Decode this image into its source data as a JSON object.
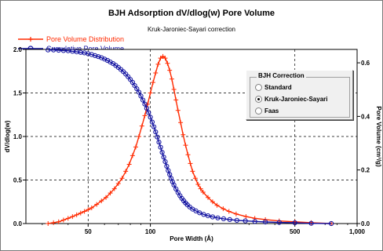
{
  "chart_data": {
    "type": "line",
    "title": "BJH Adsorption dV/dlog(w) Pore Volume",
    "subtitle": "Kruk-Jaroniec-Sayari correction",
    "xlabel": "Pore Width (Å)",
    "ylabel_left": "dV/dlog(w)",
    "ylabel_right": "Pore Volume (cm³/g)",
    "xscale": "log",
    "xlim": [
      25,
      1000
    ],
    "ylim_left": [
      0,
      2.0
    ],
    "ylim_right": [
      0,
      0.65
    ],
    "x_ticks": [
      {
        "value": 50,
        "label": "50"
      },
      {
        "value": 100,
        "label": "100"
      },
      {
        "value": 500,
        "label": "500"
      },
      {
        "value": 1000,
        "label": "1,000"
      }
    ],
    "y_ticks_left": [
      "0.0",
      "0.5",
      "1.0",
      "1.5",
      "2.0"
    ],
    "y_ticks_right": [
      "0.0",
      "0.2",
      "0.4",
      "0.6"
    ],
    "grid": true,
    "legend_position": "top-left",
    "series": [
      {
        "name": "Pore Volume Distribution",
        "axis": "left",
        "color": "#ff2a00",
        "marker": "plus",
        "x": [
          32,
          34,
          36,
          38,
          40,
          42,
          44,
          46,
          48,
          50,
          52,
          55,
          58,
          61,
          64,
          67,
          70,
          73,
          76,
          79,
          82,
          85,
          88,
          91,
          94,
          97,
          100,
          103,
          106,
          109,
          112,
          115,
          118,
          121,
          124,
          127,
          130,
          133,
          136,
          140,
          144,
          148,
          152,
          156,
          160,
          165,
          170,
          175,
          180,
          190,
          200,
          210,
          225,
          240,
          260,
          290,
          320,
          360,
          420,
          500,
          600,
          750
        ],
        "y": [
          0.0,
          0.01,
          0.02,
          0.04,
          0.06,
          0.08,
          0.1,
          0.12,
          0.14,
          0.16,
          0.18,
          0.22,
          0.26,
          0.3,
          0.35,
          0.4,
          0.46,
          0.52,
          0.6,
          0.68,
          0.78,
          0.88,
          1.0,
          1.12,
          1.24,
          1.37,
          1.5,
          1.62,
          1.73,
          1.83,
          1.9,
          1.92,
          1.9,
          1.84,
          1.76,
          1.66,
          1.54,
          1.42,
          1.3,
          1.16,
          1.02,
          0.9,
          0.79,
          0.69,
          0.6,
          0.52,
          0.45,
          0.4,
          0.36,
          0.3,
          0.25,
          0.21,
          0.17,
          0.14,
          0.11,
          0.08,
          0.06,
          0.045,
          0.03,
          0.02,
          0.01,
          0.0
        ]
      },
      {
        "name": "Cumulative Pore Volume",
        "axis": "right",
        "color": "#1010a0",
        "marker": "circle",
        "x": [
          32,
          34,
          36,
          38,
          40,
          42,
          44,
          46,
          48,
          50,
          52,
          54,
          56,
          58,
          60,
          62,
          64,
          66,
          68,
          70,
          72,
          74,
          76,
          78,
          80,
          82,
          84,
          86,
          88,
          90,
          92,
          94,
          96,
          98,
          100,
          102,
          104,
          106,
          108,
          110,
          112,
          114,
          116,
          118,
          120,
          122,
          124,
          126,
          128,
          130,
          133,
          136,
          139,
          142,
          145,
          148,
          151,
          155,
          160,
          166,
          173,
          181,
          190,
          200,
          212,
          226,
          242,
          262,
          288,
          320,
          360,
          420,
          500,
          600,
          750
        ],
        "y": [
          0.648,
          0.648,
          0.647,
          0.646,
          0.645,
          0.643,
          0.641,
          0.639,
          0.637,
          0.634,
          0.631,
          0.627,
          0.623,
          0.619,
          0.614,
          0.609,
          0.603,
          0.597,
          0.59,
          0.583,
          0.575,
          0.567,
          0.558,
          0.548,
          0.538,
          0.527,
          0.515,
          0.503,
          0.49,
          0.476,
          0.461,
          0.446,
          0.43,
          0.414,
          0.397,
          0.379,
          0.361,
          0.342,
          0.323,
          0.304,
          0.285,
          0.266,
          0.248,
          0.231,
          0.214,
          0.198,
          0.183,
          0.169,
          0.156,
          0.144,
          0.129,
          0.116,
          0.104,
          0.094,
          0.085,
          0.077,
          0.07,
          0.062,
          0.054,
          0.047,
          0.04,
          0.034,
          0.029,
          0.025,
          0.021,
          0.018,
          0.015,
          0.012,
          0.01,
          0.008,
          0.006,
          0.004,
          0.003,
          0.001,
          0.0
        ]
      }
    ]
  },
  "correction_box": {
    "title": "BJH Correction",
    "options": [
      "Standard",
      "Kruk-Jaroniec-Sayari",
      "Faas"
    ],
    "selected": "Kruk-Jaroniec-Sayari"
  }
}
